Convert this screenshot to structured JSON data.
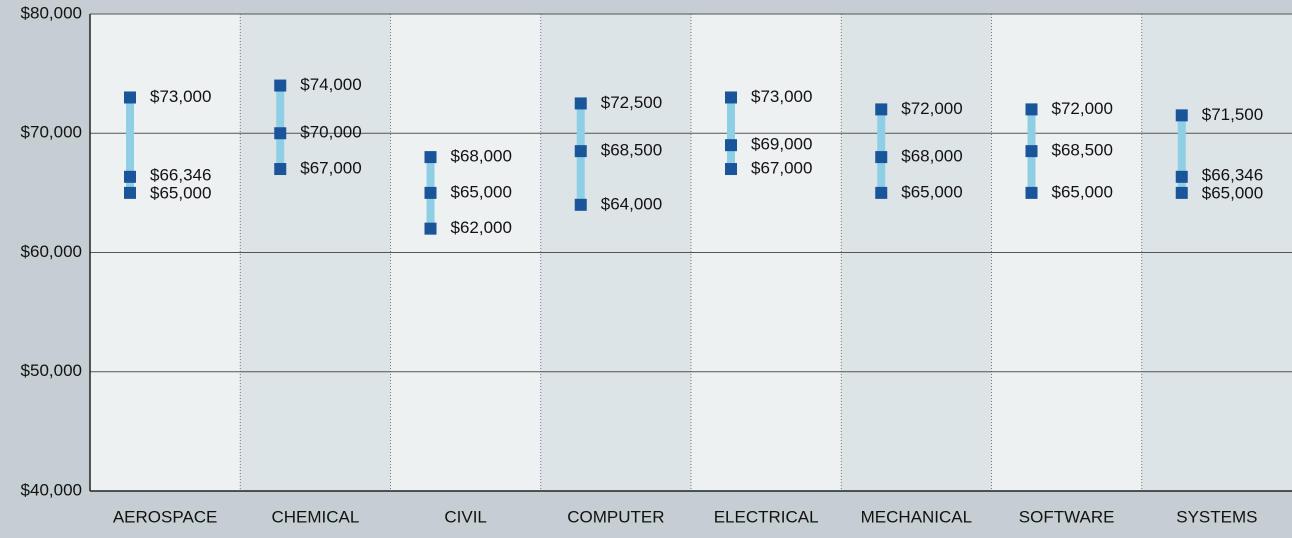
{
  "chart_data": {
    "type": "range",
    "categories": [
      "AEROSPACE",
      "CHEMICAL",
      "CIVIL",
      "COMPUTER",
      "ELECTRICAL",
      "MECHANICAL",
      "SOFTWARE",
      "SYSTEMS"
    ],
    "series": [
      {
        "color": "#1a5499",
        "values": [
          73000,
          74000,
          68000,
          72500,
          73000,
          72000,
          72000,
          71500
        ],
        "value_labels": [
          "$73,000",
          "$74,000",
          "$68,000",
          "$72,500",
          "$73,000",
          "$72,000",
          "$72,000",
          "$71,500"
        ]
      },
      {
        "color": "#1a5499",
        "values": [
          66346,
          70000,
          65000,
          68500,
          69000,
          68000,
          68500,
          66346
        ],
        "value_labels": [
          "$66,346",
          "$70,000",
          "$65,000",
          "$68,500",
          "$69,000",
          "$68,000",
          "$68,500",
          "$66,346"
        ]
      },
      {
        "color": "#1a5499",
        "values": [
          65000,
          67000,
          62000,
          64000,
          67000,
          65000,
          65000,
          65000
        ],
        "value_labels": [
          "$65,000",
          "$67,000",
          "$62,000",
          "$64,000",
          "$67,000",
          "$65,000",
          "$65,000",
          "$65,000"
        ]
      }
    ],
    "range_color": "#8ecfe6",
    "ylim": [
      40000,
      80000
    ],
    "yticks": [
      {
        "value": 40000,
        "label": "$40,000"
      },
      {
        "value": 50000,
        "label": "$50,000"
      },
      {
        "value": 60000,
        "label": "$60,000"
      },
      {
        "value": 70000,
        "label": "$70,000"
      },
      {
        "value": 80000,
        "label": "$80,000"
      }
    ],
    "grid": true
  }
}
